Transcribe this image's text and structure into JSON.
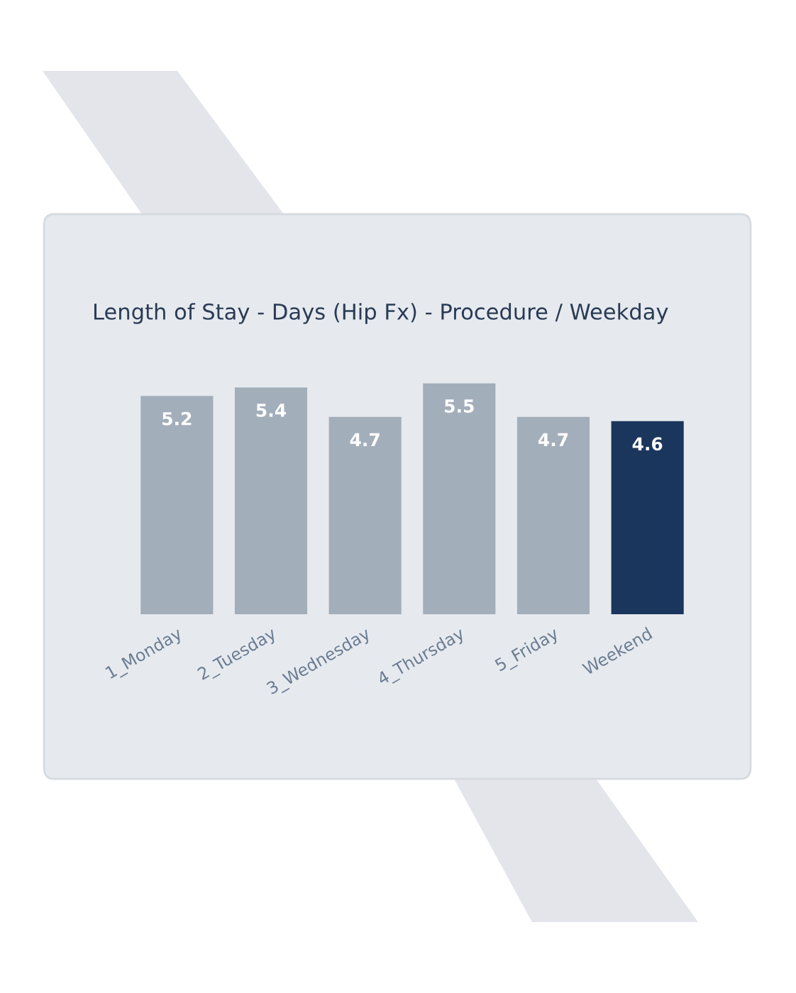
{
  "chart_data": {
    "type": "bar",
    "title": "Length of Stay - Days (Hip Fx) - Procedure / Weekday",
    "categories": [
      "1_Monday",
      "2_Tuesday",
      "3_Wednesday",
      "4_Thursday",
      "5_Friday",
      "Weekend"
    ],
    "values": [
      5.2,
      5.4,
      4.7,
      5.5,
      4.7,
      4.6
    ],
    "colors": [
      "#a3aebb",
      "#a3aebb",
      "#a3aebb",
      "#a3aebb",
      "#a3aebb",
      "#1b365d"
    ],
    "data_labels": true
  }
}
